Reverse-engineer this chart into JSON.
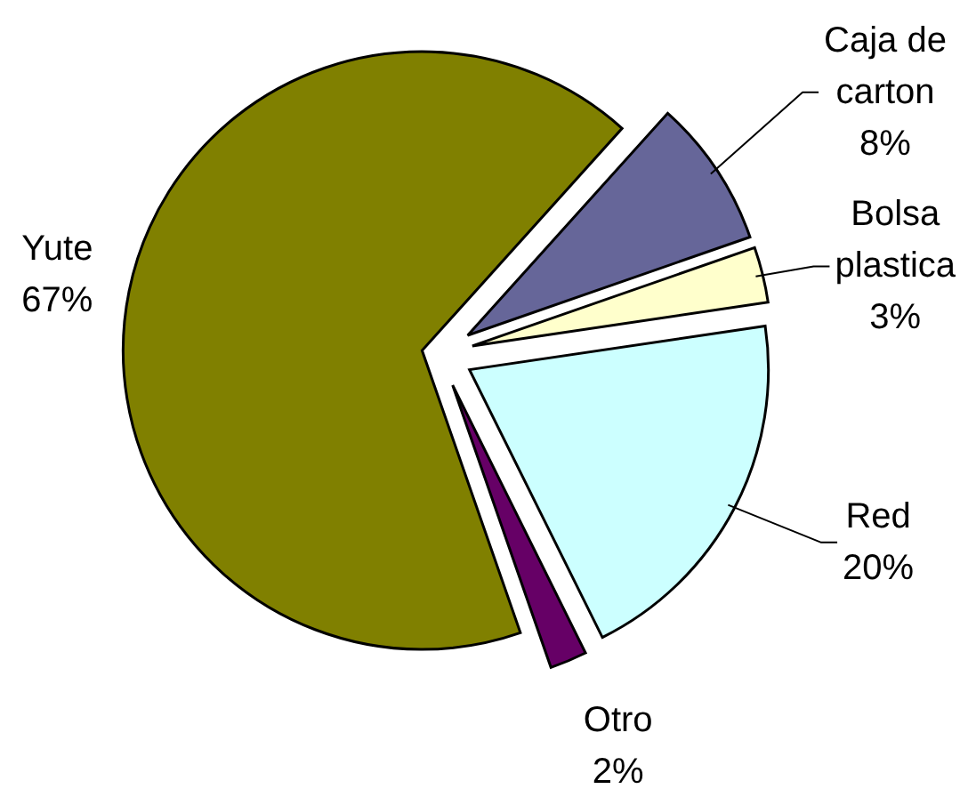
{
  "chart_data": {
    "type": "pie",
    "categories": [
      "Caja de carton",
      "Bolsa plastica",
      "Red",
      "Otro",
      "Yute"
    ],
    "values": [
      8,
      3,
      20,
      2,
      67
    ],
    "colors": [
      "#666699",
      "#ffffcc",
      "#ccffff",
      "#660066",
      "#808000"
    ],
    "value_labels": [
      "8%",
      "3%",
      "20%",
      "2%",
      "67%"
    ]
  }
}
